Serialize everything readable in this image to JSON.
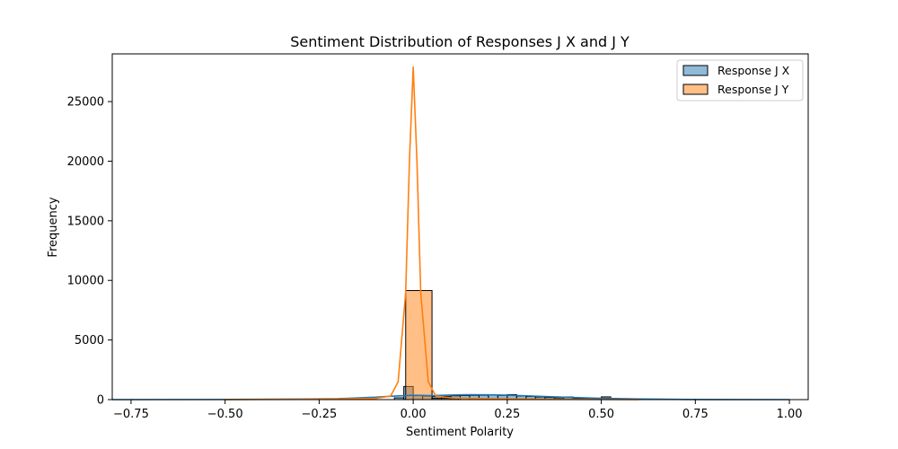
{
  "chart_data": {
    "type": "histogram",
    "title": "Sentiment Distribution of Responses J X and J Y",
    "xlabel": "Sentiment Polarity",
    "ylabel": "Frequency",
    "xlim": [
      -0.8,
      1.05
    ],
    "ylim": [
      0,
      29000
    ],
    "xticks": [
      -0.75,
      -0.5,
      -0.25,
      0.0,
      0.25,
      0.5,
      0.75,
      1.0
    ],
    "xtick_labels": [
      "−0.75",
      "−0.50",
      "−0.25",
      "0.00",
      "0.25",
      "0.50",
      "0.75",
      "1.00"
    ],
    "yticks": [
      0,
      5000,
      10000,
      15000,
      20000,
      25000
    ],
    "ytick_labels": [
      "0",
      "5000",
      "10000",
      "15000",
      "20000",
      "25000"
    ],
    "grid": false,
    "legend_position": "top-right",
    "series": [
      {
        "name": "Response J X",
        "color": "#1f77b4",
        "bin_width": 0.025,
        "bins": [
          {
            "x0": -0.05,
            "count": 150
          },
          {
            "x0": -0.025,
            "count": 1100
          },
          {
            "x0": 0.0,
            "count": 350
          },
          {
            "x0": 0.025,
            "count": 300
          },
          {
            "x0": 0.05,
            "count": 250
          },
          {
            "x0": 0.075,
            "count": 280
          },
          {
            "x0": 0.1,
            "count": 320
          },
          {
            "x0": 0.125,
            "count": 340
          },
          {
            "x0": 0.15,
            "count": 350
          },
          {
            "x0": 0.175,
            "count": 360
          },
          {
            "x0": 0.2,
            "count": 380
          },
          {
            "x0": 0.225,
            "count": 350
          },
          {
            "x0": 0.25,
            "count": 420
          },
          {
            "x0": 0.275,
            "count": 300
          },
          {
            "x0": 0.3,
            "count": 260
          },
          {
            "x0": 0.325,
            "count": 220
          },
          {
            "x0": 0.35,
            "count": 180
          },
          {
            "x0": 0.375,
            "count": 150
          },
          {
            "x0": 0.4,
            "count": 220
          },
          {
            "x0": 0.425,
            "count": 100
          },
          {
            "x0": 0.45,
            "count": 80
          },
          {
            "x0": 0.475,
            "count": 60
          },
          {
            "x0": 0.5,
            "count": 230
          },
          {
            "x0": 0.525,
            "count": 40
          }
        ],
        "kde": {
          "x": [
            -0.8,
            -0.5,
            -0.3,
            -0.2,
            -0.1,
            -0.05,
            0.0,
            0.05,
            0.1,
            0.15,
            0.2,
            0.25,
            0.3,
            0.4,
            0.5,
            0.6,
            0.7,
            0.8,
            1.0
          ],
          "y": [
            0,
            10,
            40,
            80,
            200,
            300,
            360,
            340,
            380,
            410,
            400,
            370,
            320,
            200,
            110,
            50,
            20,
            5,
            0
          ]
        }
      },
      {
        "name": "Response J Y",
        "color": "#ff7f0e",
        "bin_width": 0.07,
        "bins": [
          {
            "x0": -0.02,
            "count": 9150
          },
          {
            "x0": 0.05,
            "count": 100
          }
        ],
        "kde": {
          "x": [
            -0.5,
            -0.3,
            -0.1,
            -0.06,
            -0.04,
            -0.02,
            -0.01,
            0.0,
            0.01,
            0.02,
            0.04,
            0.06,
            0.1,
            0.2,
            0.3,
            0.5,
            0.6
          ],
          "y": [
            0,
            20,
            100,
            300,
            1500,
            9000,
            20000,
            27900,
            20000,
            9000,
            1500,
            300,
            150,
            80,
            50,
            10,
            0
          ]
        }
      }
    ]
  }
}
